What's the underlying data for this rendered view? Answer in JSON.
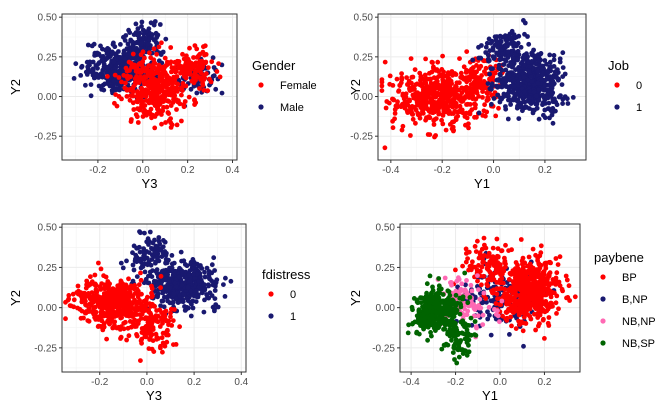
{
  "chart_data": [
    {
      "type": "scatter",
      "xlabel": "Y3",
      "ylabel": "Y2",
      "xlim": [
        -0.36,
        0.42
      ],
      "ylim": [
        -0.4,
        0.52
      ],
      "xticks": [
        "-0.2",
        "0.0",
        "0.2",
        "0.4"
      ],
      "xtick_values": [
        -0.2,
        0.0,
        0.2,
        0.4
      ],
      "yticks": [
        "-0.25",
        "0.00",
        "0.25",
        "0.50"
      ],
      "ytick_values": [
        -0.25,
        0.0,
        0.25,
        0.5
      ],
      "grid": true,
      "legend": {
        "title": "Gender",
        "position": "right",
        "entries": [
          {
            "label": "Female",
            "color": "#ff0000"
          },
          {
            "label": "Male",
            "color": "#191970"
          }
        ]
      },
      "series": [
        {
          "name": "Male",
          "color": "#191970",
          "clusters": [
            {
              "center": [
                -0.1,
                0.18
              ],
              "spread": [
                0.1,
                0.1
              ],
              "count": 380
            },
            {
              "center": [
                0.0,
                0.36
              ],
              "spread": [
                0.05,
                0.07
              ],
              "count": 90
            },
            {
              "center": [
                0.24,
                0.12
              ],
              "spread": [
                0.06,
                0.08
              ],
              "count": 80
            }
          ]
        },
        {
          "name": "Female",
          "color": "#ff0000",
          "clusters": [
            {
              "center": [
                0.05,
                0.05
              ],
              "spread": [
                0.1,
                0.14
              ],
              "count": 380
            },
            {
              "center": [
                0.22,
                0.18
              ],
              "spread": [
                0.06,
                0.08
              ],
              "count": 120
            }
          ]
        }
      ]
    },
    {
      "type": "scatter",
      "xlabel": "Y1",
      "ylabel": "Y2",
      "xlim": [
        -0.45,
        0.36
      ],
      "ylim": [
        -0.4,
        0.52
      ],
      "xticks": [
        "-0.4",
        "-0.2",
        "0.0",
        "0.2"
      ],
      "xtick_values": [
        -0.4,
        -0.2,
        0.0,
        0.2
      ],
      "yticks": [
        "-0.25",
        "0.00",
        "0.25",
        "0.50"
      ],
      "ytick_values": [
        -0.25,
        0.0,
        0.25,
        0.5
      ],
      "grid": true,
      "legend": {
        "title": "Job",
        "position": "right",
        "entries": [
          {
            "label": "0",
            "color": "#ff0000"
          },
          {
            "label": "1",
            "color": "#191970"
          }
        ]
      },
      "series": [
        {
          "name": "0",
          "color": "#ff0000",
          "clusters": [
            {
              "center": [
                -0.22,
                0.0
              ],
              "spread": [
                0.11,
                0.12
              ],
              "count": 500
            },
            {
              "center": [
                -0.05,
                0.1
              ],
              "spread": [
                0.06,
                0.1
              ],
              "count": 120
            }
          ]
        },
        {
          "name": "1",
          "color": "#191970",
          "clusters": [
            {
              "center": [
                0.14,
                0.08
              ],
              "spread": [
                0.09,
                0.12
              ],
              "count": 520
            },
            {
              "center": [
                0.05,
                0.3
              ],
              "spread": [
                0.06,
                0.08
              ],
              "count": 110
            }
          ]
        }
      ]
    },
    {
      "type": "scatter",
      "xlabel": "Y3",
      "ylabel": "Y2",
      "xlim": [
        -0.36,
        0.42
      ],
      "ylim": [
        -0.4,
        0.52
      ],
      "xticks": [
        "-0.2",
        "0.0",
        "0.2",
        "0.4"
      ],
      "xtick_values": [
        -0.2,
        0.0,
        0.2,
        0.4
      ],
      "yticks": [
        "-0.25",
        "0.00",
        "0.25",
        "0.50"
      ],
      "ytick_values": [
        -0.25,
        0.0,
        0.25,
        0.5
      ],
      "grid": true,
      "legend": {
        "title": "fdistress",
        "position": "right",
        "entries": [
          {
            "label": "0",
            "color": "#ff0000"
          },
          {
            "label": "1",
            "color": "#191970"
          }
        ]
      },
      "series": [
        {
          "name": "1",
          "color": "#191970",
          "clusters": [
            {
              "center": [
                0.15,
                0.14
              ],
              "spread": [
                0.1,
                0.1
              ],
              "count": 420
            },
            {
              "center": [
                0.02,
                0.34
              ],
              "spread": [
                0.06,
                0.08
              ],
              "count": 90
            }
          ]
        },
        {
          "name": "0",
          "color": "#ff0000",
          "clusters": [
            {
              "center": [
                -0.15,
                0.03
              ],
              "spread": [
                0.1,
                0.1
              ],
              "count": 450
            },
            {
              "center": [
                0.02,
                -0.1
              ],
              "spread": [
                0.07,
                0.11
              ],
              "count": 150
            }
          ]
        }
      ]
    },
    {
      "type": "scatter",
      "xlabel": "Y1",
      "ylabel": "Y2",
      "xlim": [
        -0.45,
        0.36
      ],
      "ylim": [
        -0.4,
        0.52
      ],
      "xticks": [
        "-0.4",
        "-0.2",
        "0.0",
        "0.2"
      ],
      "xtick_values": [
        -0.4,
        -0.2,
        0.0,
        0.2
      ],
      "yticks": [
        "-0.25",
        "0.00",
        "0.25",
        "0.50"
      ],
      "ytick_values": [
        -0.25,
        0.0,
        0.25,
        0.5
      ],
      "grid": true,
      "legend": {
        "title": "paybene",
        "position": "right",
        "entries": [
          {
            "label": "BP",
            "color": "#ff0000"
          },
          {
            "label": "B,NP",
            "color": "#191970"
          },
          {
            "label": "NB,NP",
            "color": "#ff69b4"
          },
          {
            "label": "NB,SP",
            "color": "#006400"
          }
        ]
      },
      "series": [
        {
          "name": "B,NP",
          "color": "#191970",
          "clusters": [
            {
              "center": [
                0.0,
                0.08
              ],
              "spread": [
                0.12,
                0.14
              ],
              "count": 170
            }
          ]
        },
        {
          "name": "BP",
          "color": "#ff0000",
          "clusters": [
            {
              "center": [
                0.13,
                0.1
              ],
              "spread": [
                0.09,
                0.13
              ],
              "count": 560
            },
            {
              "center": [
                -0.05,
                0.25
              ],
              "spread": [
                0.06,
                0.1
              ],
              "count": 110
            }
          ]
        },
        {
          "name": "NB,NP",
          "color": "#ff69b4",
          "clusters": [
            {
              "center": [
                -0.16,
                0.03
              ],
              "spread": [
                0.09,
                0.1
              ],
              "count": 110
            }
          ]
        },
        {
          "name": "NB,SP",
          "color": "#006400",
          "clusters": [
            {
              "center": [
                -0.28,
                -0.03
              ],
              "spread": [
                0.08,
                0.1
              ],
              "count": 330
            },
            {
              "center": [
                -0.18,
                -0.2
              ],
              "spread": [
                0.04,
                0.08
              ],
              "count": 60
            }
          ]
        }
      ]
    }
  ]
}
